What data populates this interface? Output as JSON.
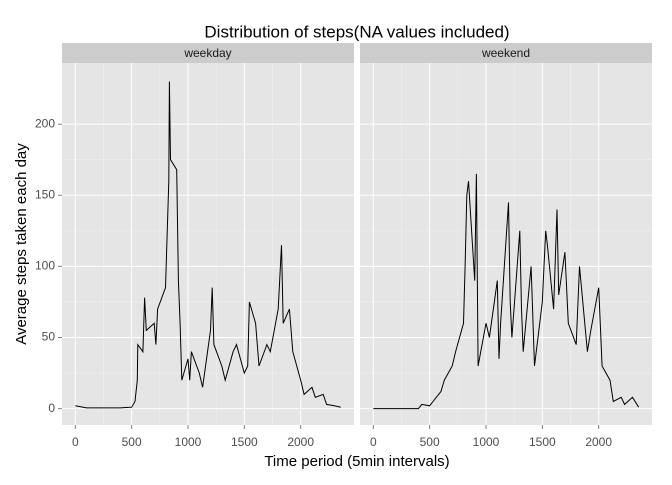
{
  "chart_data": {
    "type": "line",
    "title": "Distribution of steps(NA values included)",
    "xlabel": "Time period (5min intervals)",
    "ylabel": "Average steps taken each day",
    "xlim": [
      -118,
      2473
    ],
    "ylim": [
      -11.5,
      243
    ],
    "xticks": [
      0,
      500,
      1000,
      1500,
      2000
    ],
    "yticks": [
      0,
      50,
      100,
      150,
      200
    ],
    "grid": true,
    "color": "#000000",
    "facets": [
      {
        "name": "weekday",
        "x": [
          0,
          100,
          200,
          300,
          400,
          500,
          530,
          550,
          555,
          600,
          615,
          630,
          700,
          715,
          730,
          800,
          830,
          835,
          845,
          900,
          915,
          930,
          945,
          1000,
          1015,
          1030,
          1100,
          1130,
          1200,
          1215,
          1230,
          1300,
          1330,
          1400,
          1430,
          1500,
          1530,
          1545,
          1600,
          1630,
          1700,
          1730,
          1800,
          1830,
          1845,
          1900,
          1930,
          2000,
          2030,
          2100,
          2130,
          2200,
          2230,
          2300,
          2355
        ],
        "values": [
          2,
          0.5,
          0.5,
          0.5,
          0.5,
          1,
          5,
          20,
          45,
          40,
          78,
          55,
          60,
          45,
          70,
          85,
          160,
          230,
          175,
          168,
          90,
          60,
          20,
          35,
          20,
          40,
          25,
          15,
          55,
          85,
          45,
          30,
          20,
          40,
          45,
          25,
          30,
          75,
          60,
          30,
          45,
          40,
          70,
          115,
          60,
          70,
          40,
          20,
          10,
          15,
          8,
          10,
          3,
          2,
          1
        ]
      },
      {
        "name": "weekend",
        "x": [
          0,
          100,
          200,
          300,
          400,
          430,
          500,
          530,
          600,
          630,
          700,
          730,
          800,
          815,
          830,
          845,
          900,
          915,
          930,
          1000,
          1030,
          1100,
          1115,
          1130,
          1200,
          1215,
          1230,
          1300,
          1315,
          1330,
          1400,
          1430,
          1500,
          1530,
          1545,
          1600,
          1630,
          1645,
          1700,
          1730,
          1800,
          1830,
          1900,
          1930,
          2000,
          2030,
          2100,
          2130,
          2200,
          2230,
          2300,
          2355
        ],
        "values": [
          0,
          0,
          0,
          0,
          0,
          3,
          2,
          5,
          12,
          20,
          30,
          40,
          60,
          100,
          150,
          160,
          90,
          165,
          30,
          60,
          50,
          90,
          35,
          60,
          145,
          75,
          50,
          125,
          70,
          40,
          100,
          30,
          75,
          125,
          115,
          70,
          140,
          80,
          110,
          60,
          45,
          100,
          40,
          55,
          85,
          30,
          20,
          5,
          8,
          3,
          8,
          1
        ]
      }
    ]
  }
}
